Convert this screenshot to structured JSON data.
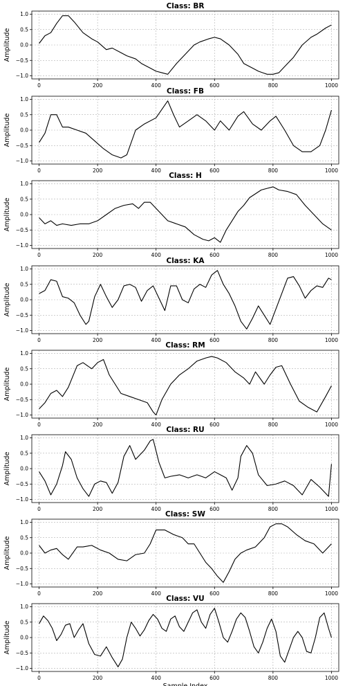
{
  "chart_data": [
    {
      "type": "line",
      "title": "Class: BR",
      "ylabel": "Amplitude",
      "xlabel": "",
      "xlim": [
        -25,
        1025
      ],
      "ylim": [
        -1.1,
        1.1
      ],
      "xticks": [
        0,
        200,
        400,
        600,
        800,
        1000
      ],
      "yticks": [
        -1.0,
        -0.5,
        0.0,
        0.5,
        1.0
      ],
      "grid": true,
      "series": [
        {
          "x": [
            0,
            20,
            40,
            60,
            80,
            100,
            120,
            150,
            180,
            200,
            230,
            250,
            280,
            300,
            330,
            350,
            380,
            400,
            420,
            440,
            470,
            500,
            530,
            550,
            580,
            600,
            620,
            650,
            680,
            700,
            730,
            750,
            780,
            800,
            820,
            840,
            870,
            900,
            930,
            950,
            980,
            1000
          ],
          "y": [
            0.05,
            0.3,
            0.4,
            0.7,
            0.95,
            0.95,
            0.75,
            0.4,
            0.2,
            0.1,
            -0.15,
            -0.1,
            -0.25,
            -0.35,
            -0.45,
            -0.6,
            -0.75,
            -0.85,
            -0.9,
            -0.95,
            -0.6,
            -0.3,
            0.0,
            0.1,
            0.2,
            0.25,
            0.2,
            0.0,
            -0.3,
            -0.6,
            -0.75,
            -0.85,
            -0.95,
            -0.95,
            -0.9,
            -0.7,
            -0.4,
            0.0,
            0.25,
            0.35,
            0.55,
            0.65
          ]
        }
      ]
    },
    {
      "type": "line",
      "title": "Class: FB",
      "ylabel": "Amplitude",
      "xlabel": "",
      "xlim": [
        -25,
        1025
      ],
      "ylim": [
        -1.1,
        1.1
      ],
      "xticks": [
        0,
        200,
        400,
        600,
        800,
        1000
      ],
      "yticks": [
        -1.0,
        -0.5,
        0.0,
        0.5,
        1.0
      ],
      "grid": true,
      "series": [
        {
          "x": [
            0,
            20,
            40,
            60,
            80,
            100,
            130,
            160,
            190,
            220,
            250,
            280,
            300,
            330,
            360,
            400,
            440,
            460,
            480,
            510,
            540,
            570,
            600,
            620,
            650,
            680,
            700,
            730,
            760,
            790,
            810,
            840,
            870,
            900,
            930,
            960,
            980,
            1000
          ],
          "y": [
            -0.4,
            -0.1,
            0.5,
            0.5,
            0.1,
            0.1,
            0.0,
            -0.1,
            -0.35,
            -0.6,
            -0.8,
            -0.9,
            -0.8,
            0.0,
            0.2,
            0.4,
            0.95,
            0.5,
            0.1,
            0.3,
            0.5,
            0.3,
            0.0,
            0.3,
            0.0,
            0.45,
            0.6,
            0.2,
            0.0,
            0.3,
            0.45,
            0.0,
            -0.5,
            -0.7,
            -0.7,
            -0.5,
            0.0,
            0.65
          ]
        }
      ]
    },
    {
      "type": "line",
      "title": "Class: H",
      "ylabel": "Amplitude",
      "xlabel": "",
      "xlim": [
        -25,
        1025
      ],
      "ylim": [
        -1.1,
        1.1
      ],
      "xticks": [
        0,
        200,
        400,
        600,
        800,
        1000
      ],
      "yticks": [
        -1.0,
        -0.5,
        0.0,
        0.5,
        1.0
      ],
      "grid": true,
      "series": [
        {
          "x": [
            0,
            20,
            40,
            60,
            80,
            110,
            140,
            170,
            200,
            230,
            260,
            290,
            320,
            340,
            360,
            380,
            410,
            440,
            470,
            500,
            530,
            560,
            580,
            600,
            620,
            640,
            660,
            680,
            700,
            720,
            760,
            780,
            800,
            820,
            850,
            880,
            910,
            940,
            970,
            1000
          ],
          "y": [
            -0.1,
            -0.3,
            -0.2,
            -0.35,
            -0.3,
            -0.35,
            -0.3,
            -0.3,
            -0.2,
            0.0,
            0.2,
            0.3,
            0.35,
            0.2,
            0.4,
            0.4,
            0.1,
            -0.2,
            -0.3,
            -0.4,
            -0.65,
            -0.8,
            -0.85,
            -0.75,
            -0.9,
            -0.5,
            -0.2,
            0.1,
            0.3,
            0.55,
            0.8,
            0.85,
            0.9,
            0.8,
            0.75,
            0.65,
            0.3,
            0.0,
            -0.3,
            -0.5
          ]
        }
      ]
    },
    {
      "type": "line",
      "title": "Class: KA",
      "ylabel": "Amplitude",
      "xlabel": "",
      "xlim": [
        -25,
        1025
      ],
      "ylim": [
        -1.1,
        1.1
      ],
      "xticks": [
        0,
        200,
        400,
        600,
        800,
        1000
      ],
      "yticks": [
        -1.0,
        -0.5,
        0.0,
        0.5,
        1.0
      ],
      "grid": true,
      "series": [
        {
          "x": [
            0,
            20,
            40,
            60,
            80,
            100,
            120,
            140,
            160,
            170,
            190,
            210,
            230,
            250,
            270,
            290,
            310,
            330,
            350,
            370,
            390,
            410,
            430,
            450,
            470,
            490,
            510,
            530,
            550,
            570,
            590,
            610,
            630,
            650,
            670,
            690,
            710,
            730,
            750,
            770,
            790,
            810,
            830,
            850,
            870,
            890,
            910,
            930,
            950,
            970,
            990,
            1000
          ],
          "y": [
            0.2,
            0.3,
            0.65,
            0.6,
            0.1,
            0.05,
            -0.1,
            -0.5,
            -0.8,
            -0.7,
            0.1,
            0.5,
            0.1,
            -0.25,
            0.0,
            0.45,
            0.5,
            0.4,
            -0.05,
            0.3,
            0.45,
            0.05,
            -0.35,
            0.45,
            0.45,
            0.0,
            -0.1,
            0.35,
            0.5,
            0.4,
            0.8,
            0.95,
            0.5,
            0.2,
            -0.2,
            -0.7,
            -0.95,
            -0.6,
            -0.2,
            -0.5,
            -0.8,
            -0.3,
            0.2,
            0.7,
            0.75,
            0.45,
            0.05,
            0.3,
            0.45,
            0.4,
            0.7,
            0.65
          ]
        }
      ]
    },
    {
      "type": "line",
      "title": "Class: RM",
      "ylabel": "Amplitude",
      "xlabel": "",
      "xlim": [
        -25,
        1025
      ],
      "ylim": [
        -1.1,
        1.1
      ],
      "xticks": [
        0,
        200,
        400,
        600,
        800,
        1000
      ],
      "yticks": [
        -1.0,
        -0.5,
        0.0,
        0.5,
        1.0
      ],
      "grid": true,
      "series": [
        {
          "x": [
            0,
            20,
            40,
            60,
            80,
            100,
            130,
            150,
            180,
            200,
            220,
            240,
            260,
            280,
            310,
            340,
            370,
            390,
            400,
            420,
            450,
            480,
            510,
            540,
            570,
            590,
            610,
            640,
            670,
            700,
            720,
            740,
            770,
            790,
            810,
            830,
            860,
            890,
            920,
            950,
            980,
            1000
          ],
          "y": [
            -0.8,
            -0.6,
            -0.3,
            -0.2,
            -0.4,
            -0.1,
            0.6,
            0.7,
            0.5,
            0.7,
            0.8,
            0.3,
            0.0,
            -0.3,
            -0.4,
            -0.5,
            -0.6,
            -0.9,
            -1.0,
            -0.5,
            0.0,
            0.3,
            0.5,
            0.75,
            0.85,
            0.9,
            0.85,
            0.7,
            0.4,
            0.2,
            0.0,
            0.4,
            0.0,
            0.3,
            0.55,
            0.6,
            0.0,
            -0.55,
            -0.75,
            -0.9,
            -0.4,
            -0.05
          ]
        }
      ]
    },
    {
      "type": "line",
      "title": "Class: RU",
      "ylabel": "Amplitude",
      "xlabel": "",
      "xlim": [
        -25,
        1025
      ],
      "ylim": [
        -1.1,
        1.1
      ],
      "xticks": [
        0,
        200,
        400,
        600,
        800,
        1000
      ],
      "yticks": [
        -1.0,
        -0.5,
        0.0,
        0.5,
        1.0
      ],
      "grid": true,
      "series": [
        {
          "x": [
            0,
            20,
            40,
            60,
            80,
            90,
            110,
            130,
            150,
            170,
            190,
            210,
            230,
            250,
            270,
            290,
            310,
            330,
            360,
            380,
            390,
            410,
            430,
            450,
            480,
            510,
            540,
            570,
            600,
            620,
            640,
            660,
            680,
            690,
            710,
            730,
            750,
            780,
            810,
            840,
            870,
            900,
            930,
            960,
            990,
            1000
          ],
          "y": [
            -0.1,
            -0.4,
            -0.85,
            -0.5,
            0.1,
            0.55,
            0.3,
            -0.3,
            -0.65,
            -0.9,
            -0.5,
            -0.4,
            -0.45,
            -0.8,
            -0.45,
            0.4,
            0.75,
            0.3,
            0.6,
            0.9,
            0.95,
            0.2,
            -0.3,
            -0.25,
            -0.2,
            -0.3,
            -0.2,
            -0.3,
            -0.1,
            -0.2,
            -0.3,
            -0.7,
            -0.3,
            0.4,
            0.75,
            0.5,
            -0.2,
            -0.55,
            -0.5,
            -0.4,
            -0.55,
            -0.85,
            -0.35,
            -0.6,
            -0.9,
            0.15
          ]
        }
      ]
    },
    {
      "type": "line",
      "title": "Class: SW",
      "ylabel": "Amplitude",
      "xlabel": "",
      "xlim": [
        -25,
        1025
      ],
      "ylim": [
        -1.1,
        1.1
      ],
      "xticks": [
        0,
        200,
        400,
        600,
        800,
        1000
      ],
      "yticks": [
        -1.0,
        -0.5,
        0.0,
        0.5,
        1.0
      ],
      "grid": true,
      "series": [
        {
          "x": [
            0,
            20,
            40,
            60,
            80,
            100,
            130,
            150,
            180,
            210,
            240,
            270,
            300,
            330,
            360,
            380,
            400,
            430,
            460,
            490,
            510,
            530,
            550,
            570,
            590,
            610,
            630,
            650,
            670,
            690,
            710,
            740,
            770,
            790,
            810,
            830,
            850,
            880,
            910,
            940,
            970,
            1000
          ],
          "y": [
            0.25,
            0.0,
            0.1,
            0.15,
            -0.05,
            -0.2,
            0.2,
            0.2,
            0.25,
            0.1,
            0.0,
            -0.2,
            -0.25,
            -0.05,
            0.0,
            0.3,
            0.75,
            0.75,
            0.6,
            0.5,
            0.3,
            0.3,
            0.0,
            -0.3,
            -0.5,
            -0.75,
            -0.95,
            -0.6,
            -0.2,
            0.0,
            0.1,
            0.2,
            0.5,
            0.85,
            0.95,
            0.95,
            0.85,
            0.6,
            0.4,
            0.3,
            0.0,
            0.3
          ]
        }
      ]
    },
    {
      "type": "line",
      "title": "Class: VU",
      "ylabel": "Amplitude",
      "xlabel": "Sample Index",
      "xlim": [
        -25,
        1025
      ],
      "ylim": [
        -1.1,
        1.1
      ],
      "xticks": [
        0,
        200,
        400,
        600,
        800,
        1000
      ],
      "yticks": [
        -1.0,
        -0.5,
        0.0,
        0.5,
        1.0
      ],
      "grid": true,
      "series": [
        {
          "x": [
            0,
            15,
            30,
            45,
            60,
            75,
            90,
            105,
            120,
            135,
            150,
            170,
            190,
            210,
            230,
            250,
            270,
            285,
            300,
            315,
            330,
            345,
            360,
            375,
            390,
            405,
            420,
            435,
            450,
            465,
            480,
            495,
            510,
            525,
            540,
            555,
            570,
            585,
            600,
            615,
            630,
            645,
            660,
            675,
            690,
            705,
            720,
            735,
            750,
            765,
            780,
            795,
            810,
            825,
            840,
            855,
            870,
            885,
            900,
            915,
            930,
            945,
            960,
            975,
            990,
            1000
          ],
          "y": [
            0.45,
            0.7,
            0.55,
            0.3,
            -0.1,
            0.1,
            0.4,
            0.45,
            0.0,
            0.25,
            0.45,
            -0.2,
            -0.55,
            -0.6,
            -0.3,
            -0.65,
            -0.95,
            -0.7,
            0.0,
            0.5,
            0.3,
            0.05,
            0.25,
            0.55,
            0.75,
            0.6,
            0.3,
            0.2,
            0.6,
            0.7,
            0.35,
            0.2,
            0.5,
            0.8,
            0.9,
            0.5,
            0.3,
            0.75,
            0.95,
            0.5,
            0.0,
            -0.15,
            0.2,
            0.6,
            0.8,
            0.65,
            0.2,
            -0.3,
            -0.5,
            -0.15,
            0.3,
            0.6,
            0.2,
            -0.6,
            -0.8,
            -0.4,
            0.0,
            0.2,
            0.0,
            -0.45,
            -0.5,
            0.0,
            0.65,
            0.8,
            0.3,
            0.0
          ]
        }
      ]
    }
  ]
}
